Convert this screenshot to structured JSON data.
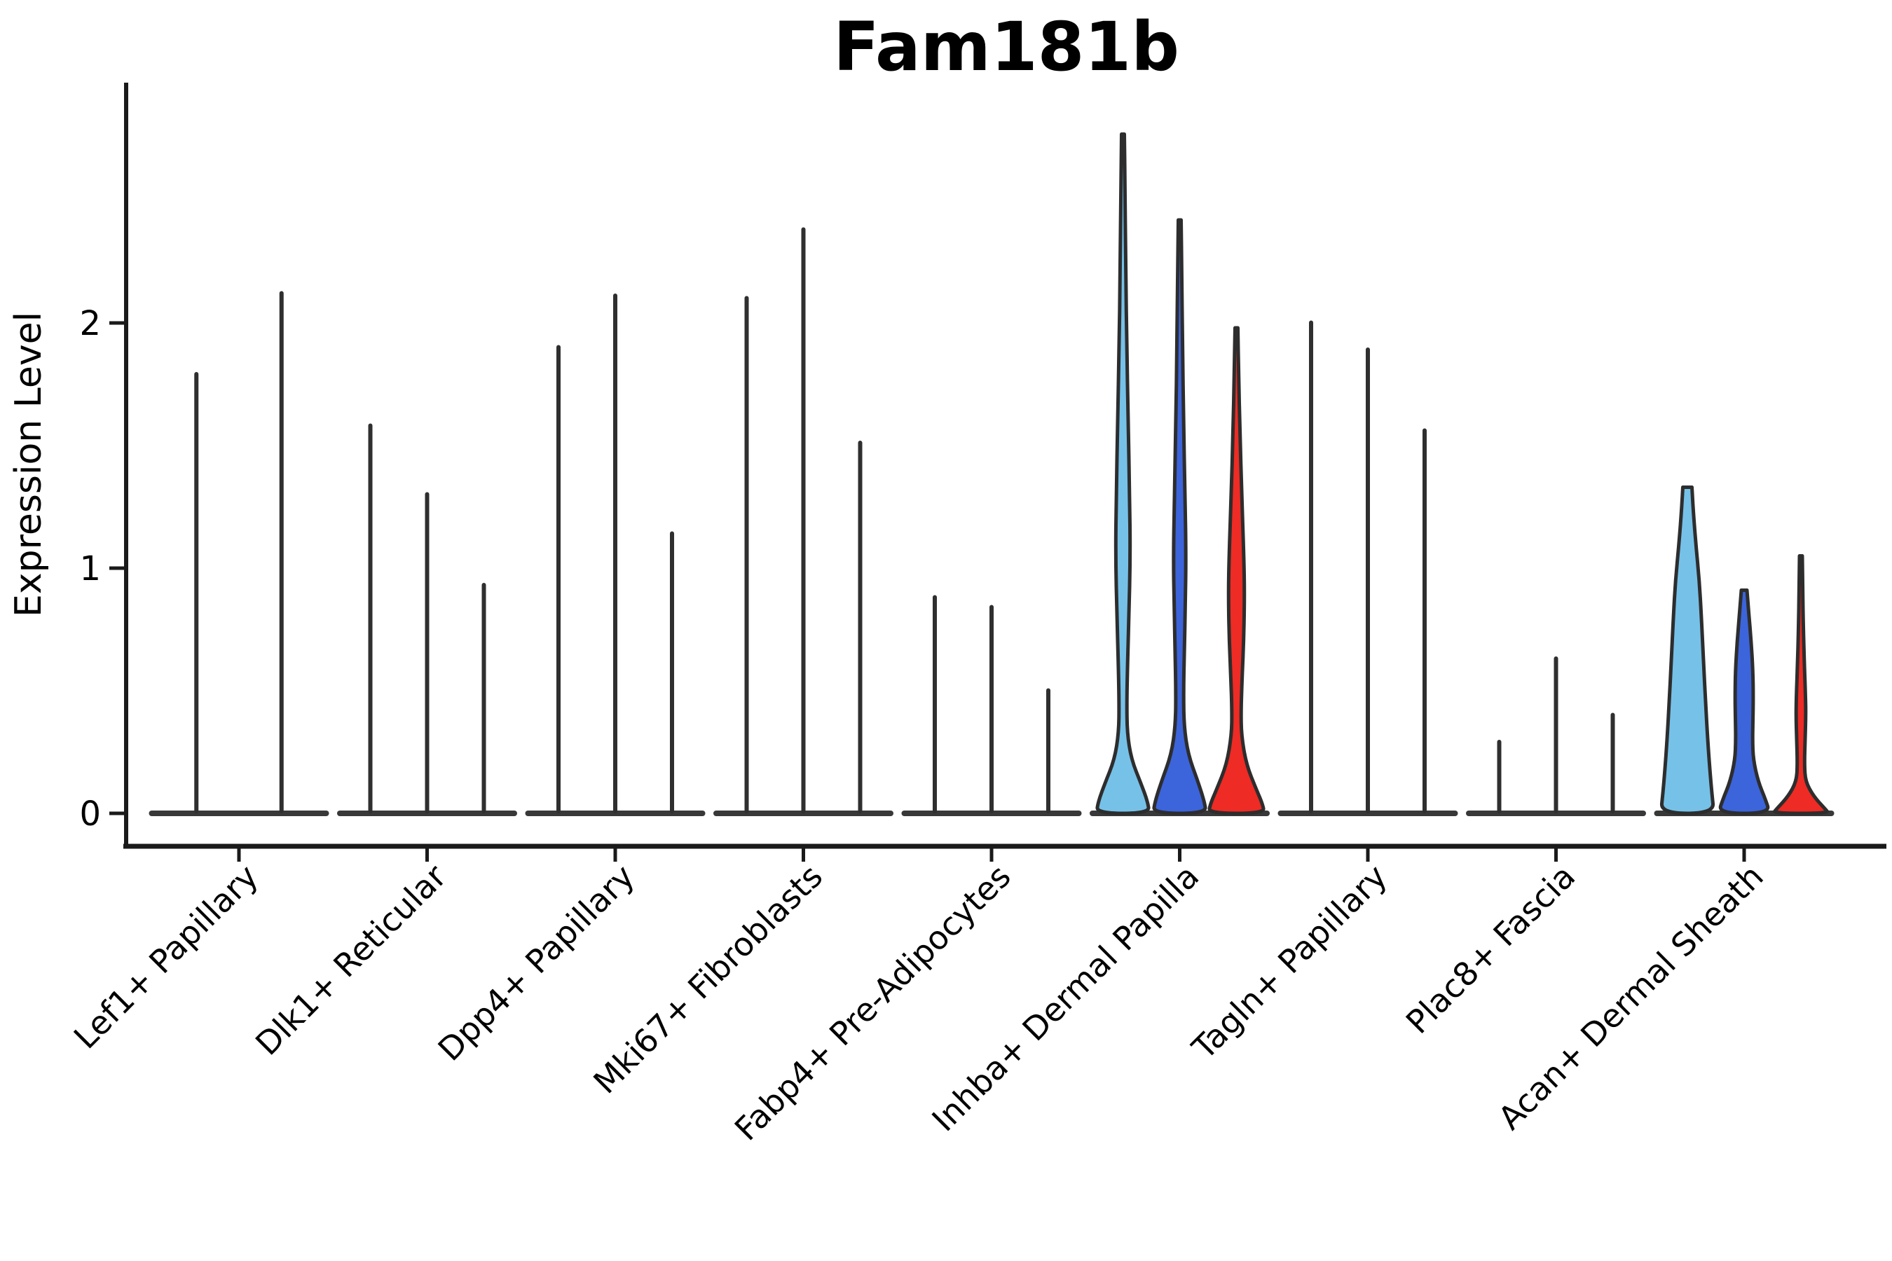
{
  "chart_data": {
    "type": "violin",
    "title": "Fam181b",
    "ylabel": "Expression Level",
    "xlabel": "",
    "yticks": [
      0,
      1,
      2
    ],
    "ylim": [
      0,
      2.98
    ],
    "grid": false,
    "legend_position": "none",
    "series_colors": {
      "light_blue": "#76C1E8",
      "dark_blue": "#3C64DB",
      "red": "#EE2B24",
      "spike": "#2F2F2F",
      "outline": "#2D2D2D",
      "baseline": "#383838",
      "axis": "#1A1A1A"
    },
    "groups": [
      {
        "label": "Lef1+ Papillary",
        "violins": [
          {
            "max": 1.8,
            "shape": "spike",
            "color": "spike"
          },
          {
            "max": 2.13,
            "shape": "spike",
            "color": "spike"
          }
        ]
      },
      {
        "label": "Dlk1+ Reticular",
        "violins": [
          {
            "max": 1.59,
            "shape": "spike",
            "color": "spike"
          },
          {
            "max": 1.31,
            "shape": "spike",
            "color": "spike"
          },
          {
            "max": 0.94,
            "shape": "spike",
            "color": "spike"
          }
        ]
      },
      {
        "label": "Dpp4+ Papillary",
        "violins": [
          {
            "max": 1.91,
            "shape": "spike",
            "color": "spike"
          },
          {
            "max": 2.12,
            "shape": "spike",
            "color": "spike"
          },
          {
            "max": 1.15,
            "shape": "spike",
            "color": "spike"
          }
        ]
      },
      {
        "label": "Mki67+ Fibroblasts",
        "violins": [
          {
            "max": 2.11,
            "shape": "spike",
            "color": "spike"
          },
          {
            "max": 2.39,
            "shape": "spike",
            "color": "spike"
          },
          {
            "max": 1.52,
            "shape": "spike",
            "color": "spike"
          }
        ]
      },
      {
        "label": "Fabp4+ Pre-Adipocytes",
        "violins": [
          {
            "max": 0.89,
            "shape": "spike",
            "color": "spike"
          },
          {
            "max": 0.85,
            "shape": "spike",
            "color": "spike"
          },
          {
            "max": 0.51,
            "shape": "spike",
            "color": "spike"
          }
        ]
      },
      {
        "label": "Inhba+ Dermal Papilla",
        "violins": [
          {
            "max": 2.77,
            "shape": "dp_light",
            "color": "light_blue"
          },
          {
            "max": 2.42,
            "shape": "dp_dark",
            "color": "dark_blue"
          },
          {
            "max": 1.98,
            "shape": "dp_red",
            "color": "red"
          }
        ]
      },
      {
        "label": "Tagln+ Papillary",
        "violins": [
          {
            "max": 2.01,
            "shape": "spike",
            "color": "spike"
          },
          {
            "max": 1.9,
            "shape": "spike",
            "color": "spike"
          },
          {
            "max": 1.57,
            "shape": "spike",
            "color": "spike"
          }
        ]
      },
      {
        "label": "Plac8+ Fascia",
        "violins": [
          {
            "max": 0.3,
            "shape": "spike",
            "color": "spike"
          },
          {
            "max": 0.64,
            "shape": "spike",
            "color": "spike"
          },
          {
            "max": 0.41,
            "shape": "spike",
            "color": "spike"
          }
        ]
      },
      {
        "label": "Acan+ Dermal Sheath",
        "violins": [
          {
            "max": 1.33,
            "shape": "ds_light",
            "color": "light_blue"
          },
          {
            "max": 0.91,
            "shape": "ds_dark",
            "color": "dark_blue"
          },
          {
            "max": 1.05,
            "shape": "ds_red",
            "color": "red"
          }
        ]
      }
    ]
  }
}
